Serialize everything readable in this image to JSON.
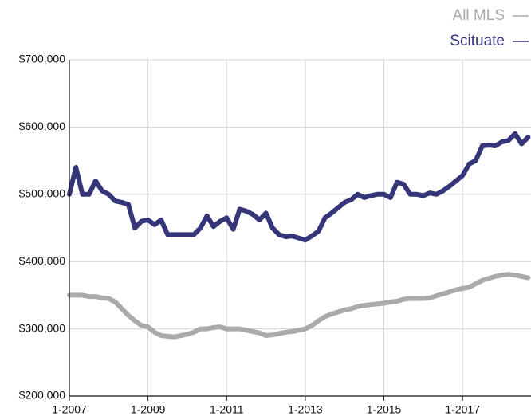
{
  "chart_data": {
    "type": "line",
    "categories": [
      "1-2007",
      null,
      null,
      null,
      null,
      null,
      null,
      null,
      null,
      null,
      null,
      null,
      "1-2009",
      null,
      null,
      null,
      null,
      null,
      null,
      null,
      null,
      null,
      null,
      null,
      "1-2011",
      null,
      null,
      null,
      null,
      null,
      null,
      null,
      null,
      null,
      null,
      null,
      "1-2013",
      null,
      null,
      null,
      null,
      null,
      null,
      null,
      null,
      null,
      null,
      null,
      "1-2015",
      null,
      null,
      null,
      null,
      null,
      null,
      null,
      null,
      null,
      null,
      null,
      "1-2017",
      null,
      null,
      null,
      null,
      null,
      null,
      null,
      null,
      null,
      null
    ],
    "series": [
      {
        "name": "All MLS",
        "color": "#aaaaaa",
        "values": [
          350000,
          350000,
          350000,
          348000,
          348000,
          346000,
          345000,
          340000,
          330000,
          320000,
          312000,
          305000,
          303000,
          295000,
          290000,
          289000,
          288000,
          290000,
          292000,
          295000,
          300000,
          300000,
          302000,
          303000,
          300000,
          300000,
          300000,
          298000,
          296000,
          294000,
          290000,
          291000,
          293000,
          295000,
          296000,
          298000,
          300000,
          305000,
          312000,
          318000,
          322000,
          325000,
          328000,
          330000,
          333000,
          335000,
          336000,
          337000,
          338000,
          340000,
          341000,
          344000,
          345000,
          345000,
          345000,
          346000,
          349000,
          352000,
          355000,
          358000,
          360000,
          362000,
          367000,
          372000,
          375000,
          378000,
          380000,
          381000,
          380000,
          378000,
          376000
        ]
      },
      {
        "name": "Scituate",
        "color": "#35357a",
        "values": [
          500000,
          540000,
          500000,
          500000,
          520000,
          505000,
          500000,
          490000,
          488000,
          485000,
          450000,
          460000,
          462000,
          455000,
          462000,
          440000,
          440000,
          440000,
          440000,
          440000,
          450000,
          468000,
          452000,
          460000,
          465000,
          448000,
          478000,
          475000,
          470000,
          462000,
          472000,
          450000,
          440000,
          437000,
          438000,
          435000,
          432000,
          438000,
          445000,
          465000,
          472000,
          480000,
          488000,
          492000,
          500000,
          495000,
          498000,
          500000,
          500000,
          495000,
          518000,
          515000,
          500000,
          500000,
          498000,
          502000,
          500000,
          505000,
          512000,
          520000,
          528000,
          545000,
          550000,
          572000,
          573000,
          572000,
          578000,
          580000,
          590000,
          575000,
          585000
        ]
      }
    ],
    "ylim": [
      200000,
      700000
    ],
    "yticks": [
      {
        "value": 200000,
        "label": "$200,000"
      },
      {
        "value": 300000,
        "label": "$300,000"
      },
      {
        "value": 400000,
        "label": "$400,000"
      },
      {
        "value": 500000,
        "label": "$500,000"
      },
      {
        "value": 600000,
        "label": "$600,000"
      },
      {
        "value": 700000,
        "label": "$700,000"
      }
    ],
    "grid": true,
    "legend": "top-right"
  }
}
